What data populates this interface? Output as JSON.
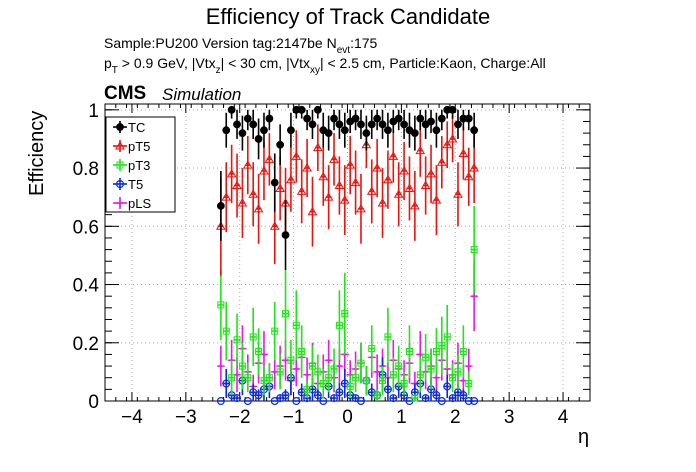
{
  "header": {
    "title": "Efficiency of Track Candidate",
    "sample_label": "Sample:PU200   Version tag:2147be  N",
    "sample_sub": "evt",
    "sample_tail": ":175",
    "cuts_p": "p",
    "cuts_p_sub": "T",
    "cuts_a": " > 0.9 GeV, |Vtx",
    "cuts_a_sub": "z",
    "cuts_b": "| < 30 cm, |Vtx",
    "cuts_b_sub": "xy",
    "cuts_c": "| < 2.5 cm, Particle:Kaon, Charge:All",
    "cms": "CMS",
    "simulation": "Simulation"
  },
  "chart_data": {
    "type": "scatter",
    "title": "Efficiency of Track Candidate",
    "xlabel": "η",
    "ylabel": "Efficiency",
    "xlim": [
      -4.5,
      4.5
    ],
    "ylim": [
      0,
      1.02
    ],
    "x_ticks": [
      -4,
      -3,
      -2,
      -1,
      0,
      1,
      2,
      3,
      4
    ],
    "x_tick_labels": [
      "−4",
      "−3",
      "−2",
      "−1",
      "0",
      "1",
      "2",
      "3",
      "4"
    ],
    "y_ticks": [
      0,
      0.2,
      0.4,
      0.6,
      0.8,
      1
    ],
    "y_tick_labels": [
      "0",
      "0.2",
      "0.4",
      "0.6",
      "0.8",
      "1"
    ],
    "grid": true,
    "legend_position": "top-left",
    "x": [
      -2.35,
      -2.25,
      -2.15,
      -2.05,
      -1.95,
      -1.85,
      -1.75,
      -1.65,
      -1.55,
      -1.45,
      -1.35,
      -1.25,
      -1.15,
      -1.05,
      -0.95,
      -0.85,
      -0.75,
      -0.65,
      -0.55,
      -0.45,
      -0.35,
      -0.25,
      -0.15,
      -0.05,
      0.05,
      0.15,
      0.25,
      0.35,
      0.45,
      0.55,
      0.65,
      0.75,
      0.85,
      0.95,
      1.05,
      1.15,
      1.25,
      1.35,
      1.45,
      1.55,
      1.65,
      1.75,
      1.85,
      1.95,
      2.05,
      2.15,
      2.25,
      2.35
    ],
    "series": [
      {
        "name": "TC",
        "color": "#000000",
        "marker": "filled-circle",
        "values": [
          0.67,
          0.93,
          1.0,
          0.95,
          0.92,
          0.97,
          0.95,
          0.9,
          0.93,
          0.97,
          0.75,
          0.88,
          0.57,
          0.93,
          1.0,
          1.0,
          0.97,
          0.95,
          1.0,
          0.93,
          0.92,
          0.97,
          0.95,
          0.93,
          0.96,
          0.97,
          0.95,
          0.92,
          0.95,
          0.97,
          0.95,
          0.93,
          0.96,
          0.97,
          0.95,
          0.93,
          0.92,
          0.97,
          0.95,
          0.96,
          0.93,
          0.97,
          1.0,
          1.0,
          0.95,
          0.97,
          0.97,
          0.93
        ],
        "errors": [
          0.12,
          0.06,
          0.03,
          0.05,
          0.06,
          0.04,
          0.05,
          0.07,
          0.06,
          0.04,
          0.1,
          0.07,
          0.12,
          0.06,
          0.03,
          0.03,
          0.04,
          0.05,
          0.03,
          0.06,
          0.06,
          0.04,
          0.05,
          0.06,
          0.04,
          0.04,
          0.05,
          0.06,
          0.05,
          0.04,
          0.05,
          0.06,
          0.04,
          0.04,
          0.05,
          0.06,
          0.06,
          0.04,
          0.05,
          0.04,
          0.06,
          0.04,
          0.03,
          0.03,
          0.05,
          0.04,
          0.04,
          0.06
        ]
      },
      {
        "name": "pT5",
        "color": "#e8140e",
        "marker": "open-triangle",
        "values": [
          0.6,
          0.7,
          0.78,
          0.74,
          0.68,
          0.81,
          0.71,
          0.66,
          0.79,
          0.83,
          0.6,
          0.73,
          0.68,
          0.76,
          0.84,
          0.72,
          0.8,
          0.65,
          0.87,
          0.77,
          0.7,
          0.83,
          0.74,
          0.69,
          0.81,
          0.75,
          0.66,
          0.88,
          0.72,
          0.8,
          0.68,
          0.76,
          0.84,
          0.71,
          0.79,
          0.73,
          0.67,
          0.86,
          0.74,
          0.78,
          0.69,
          0.82,
          0.88,
          0.9,
          0.71,
          0.85,
          0.77,
          0.8
        ],
        "errors": [
          0.17,
          0.12,
          0.1,
          0.11,
          0.12,
          0.1,
          0.11,
          0.12,
          0.1,
          0.09,
          0.13,
          0.11,
          0.12,
          0.11,
          0.09,
          0.11,
          0.1,
          0.12,
          0.08,
          0.1,
          0.11,
          0.09,
          0.1,
          0.12,
          0.1,
          0.11,
          0.12,
          0.08,
          0.11,
          0.1,
          0.12,
          0.1,
          0.09,
          0.11,
          0.1,
          0.11,
          0.12,
          0.09,
          0.1,
          0.1,
          0.12,
          0.09,
          0.08,
          0.08,
          0.11,
          0.09,
          0.1,
          0.12
        ]
      },
      {
        "name": "pT3",
        "color": "#21e418",
        "marker": "open-square",
        "values": [
          0.33,
          0.24,
          0.08,
          0.21,
          0.12,
          0.08,
          0.22,
          0.17,
          0.07,
          0.08,
          0.24,
          0.1,
          0.3,
          0.14,
          0.26,
          0.17,
          0.04,
          0.12,
          0.1,
          0.06,
          0.08,
          0.11,
          0.26,
          0.3,
          0.05,
          0.08,
          0.13,
          0.07,
          0.18,
          0.02,
          0.07,
          0.22,
          0.09,
          0.12,
          0.06,
          0.17,
          0.01,
          0.09,
          0.15,
          0.11,
          0.17,
          0.19,
          0.22,
          0.08,
          0.1,
          0.17,
          0.06,
          0.52
        ],
        "errors": [
          0.12,
          0.1,
          0.06,
          0.09,
          0.08,
          0.05,
          0.1,
          0.08,
          0.05,
          0.05,
          0.1,
          0.06,
          0.15,
          0.07,
          0.12,
          0.09,
          0.03,
          0.07,
          0.06,
          0.05,
          0.05,
          0.07,
          0.12,
          0.14,
          0.04,
          0.05,
          0.07,
          0.05,
          0.08,
          0.02,
          0.05,
          0.1,
          0.06,
          0.07,
          0.04,
          0.09,
          0.01,
          0.06,
          0.08,
          0.07,
          0.08,
          0.1,
          0.11,
          0.05,
          0.06,
          0.09,
          0.04,
          0.15
        ]
      },
      {
        "name": "T5",
        "color": "#0b2bd8",
        "marker": "open-circle",
        "values": [
          0.0,
          0.06,
          0.02,
          0.01,
          0.07,
          0.0,
          0.03,
          0.02,
          0.04,
          0.05,
          0.0,
          0.01,
          0.02,
          0.08,
          0.0,
          0.03,
          0.01,
          0.04,
          0.02,
          0.0,
          0.05,
          0.01,
          0.03,
          0.06,
          0.02,
          0.01,
          0.0,
          0.07,
          0.03,
          0.02,
          0.09,
          0.04,
          0.01,
          0.05,
          0.02,
          0.0,
          0.03,
          0.06,
          0.01,
          0.04,
          0.02,
          0.0,
          0.05,
          0.01,
          0.03,
          0.02,
          0.0,
          0.0
        ],
        "errors": [
          0.0,
          0.05,
          0.02,
          0.01,
          0.05,
          0.0,
          0.03,
          0.02,
          0.04,
          0.04,
          0.0,
          0.01,
          0.02,
          0.06,
          0.0,
          0.03,
          0.01,
          0.04,
          0.02,
          0.0,
          0.04,
          0.01,
          0.03,
          0.05,
          0.02,
          0.01,
          0.0,
          0.05,
          0.03,
          0.02,
          0.06,
          0.04,
          0.01,
          0.04,
          0.02,
          0.0,
          0.03,
          0.05,
          0.01,
          0.04,
          0.02,
          0.0,
          0.04,
          0.01,
          0.03,
          0.02,
          0.0,
          0.0
        ]
      },
      {
        "name": "pLS",
        "color": "#e719e8",
        "marker": "open-cross",
        "values": [
          0.12,
          0.06,
          0.14,
          0.09,
          0.18,
          0.1,
          0.05,
          0.13,
          0.16,
          0.08,
          0.1,
          0.12,
          0.14,
          0.07,
          0.11,
          0.15,
          0.09,
          0.13,
          0.06,
          0.1,
          0.14,
          0.08,
          0.12,
          0.16,
          0.09,
          0.11,
          0.13,
          0.07,
          0.15,
          0.1,
          0.12,
          0.08,
          0.14,
          0.11,
          0.09,
          0.13,
          0.06,
          0.16,
          0.1,
          0.12,
          0.08,
          0.14,
          0.11,
          0.09,
          0.13,
          0.07,
          0.12,
          0.36
        ],
        "errors": [
          0.07,
          0.05,
          0.07,
          0.06,
          0.08,
          0.06,
          0.04,
          0.07,
          0.08,
          0.05,
          0.06,
          0.07,
          0.07,
          0.05,
          0.06,
          0.07,
          0.06,
          0.07,
          0.04,
          0.06,
          0.07,
          0.05,
          0.06,
          0.08,
          0.05,
          0.06,
          0.07,
          0.05,
          0.07,
          0.06,
          0.06,
          0.05,
          0.07,
          0.06,
          0.05,
          0.07,
          0.04,
          0.08,
          0.06,
          0.06,
          0.05,
          0.07,
          0.06,
          0.05,
          0.07,
          0.05,
          0.06,
          0.12
        ]
      }
    ]
  }
}
